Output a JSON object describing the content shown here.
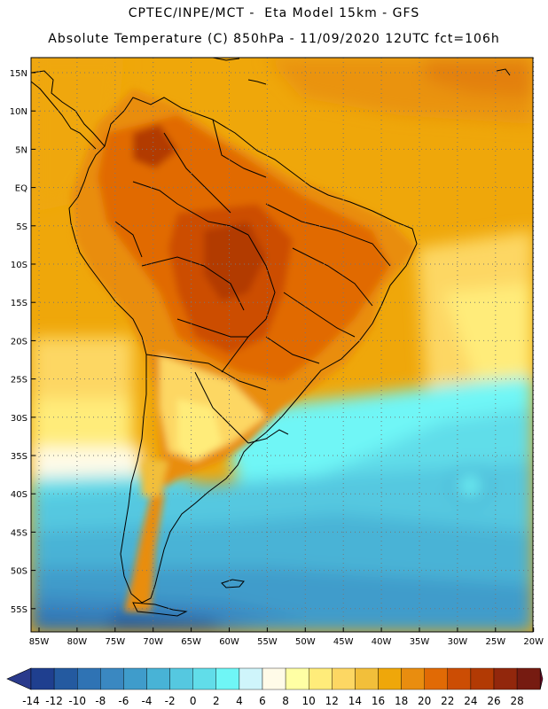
{
  "header": {
    "line1": "CPTEC/INPE/MCT -  Eta Model 15km - GFS",
    "line2": "Absolute Temperature (C) 850hPa - 11/09/2020 12UTC fct=106h"
  },
  "map": {
    "lat_labels": [
      "15N",
      "10N",
      "5N",
      "EQ",
      "5S",
      "10S",
      "15S",
      "20S",
      "25S",
      "30S",
      "35S",
      "40S",
      "45S",
      "50S",
      "55S"
    ],
    "lon_labels": [
      "85W",
      "80W",
      "75W",
      "70W",
      "65W",
      "60W",
      "55W",
      "50W",
      "45W",
      "40W",
      "35W",
      "30W",
      "25W",
      "20W"
    ]
  },
  "colorbar": {
    "labels": [
      "-14",
      "-12",
      "-10",
      "-8",
      "-6",
      "-4",
      "-2",
      "0",
      "2",
      "4",
      "6",
      "8",
      "10",
      "12",
      "14",
      "16",
      "18",
      "20",
      "22",
      "24",
      "26",
      "28"
    ],
    "colors": [
      "#1f3f8f",
      "#245aa0",
      "#2f73b4",
      "#3a88c1",
      "#3f9ccb",
      "#48b3d6",
      "#55c8e0",
      "#61dde9",
      "#6ff6f6",
      "#cff5fb",
      "#fffbe8",
      "#ffffa4",
      "#ffec7a",
      "#fdd763",
      "#f2bf3a",
      "#efa70a",
      "#e98d0f",
      "#e16a05",
      "#cc4d04",
      "#b23a04",
      "#92270c",
      "#761b11"
    ],
    "low_arrow_color": "#2a3a8c",
    "high_arrow_color": "#6e0a26"
  }
}
